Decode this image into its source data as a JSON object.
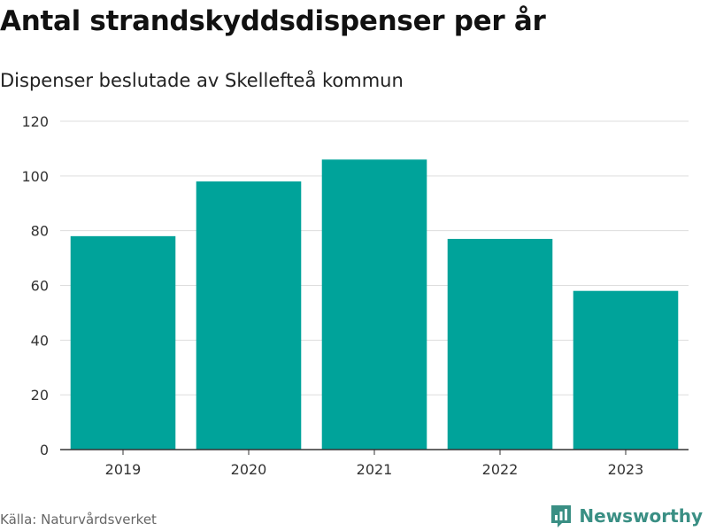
{
  "title": "Antal strandskyddsdispenser per år",
  "subtitle": "Dispenser beslutade av Skellefteå kommun",
  "source": "Källa: Naturvårdsverket",
  "brand": {
    "name": "Newsworthy",
    "icon": "newsworthy-logo-icon",
    "color": "#3a8f84"
  },
  "colors": {
    "bar": "#00a39a",
    "grid": "#dddddd",
    "axis": "#333333"
  },
  "chart_data": {
    "type": "bar",
    "title": "Antal strandskyddsdispenser per år",
    "subtitle": "Dispenser beslutade av Skellefteå kommun",
    "categories": [
      "2019",
      "2020",
      "2021",
      "2022",
      "2023"
    ],
    "values": [
      78,
      98,
      106,
      77,
      58
    ],
    "xlabel": "",
    "ylabel": "",
    "ylim": [
      0,
      120
    ],
    "yticks": [
      0,
      20,
      40,
      60,
      80,
      100,
      120
    ],
    "grid": true,
    "legend": "none"
  }
}
